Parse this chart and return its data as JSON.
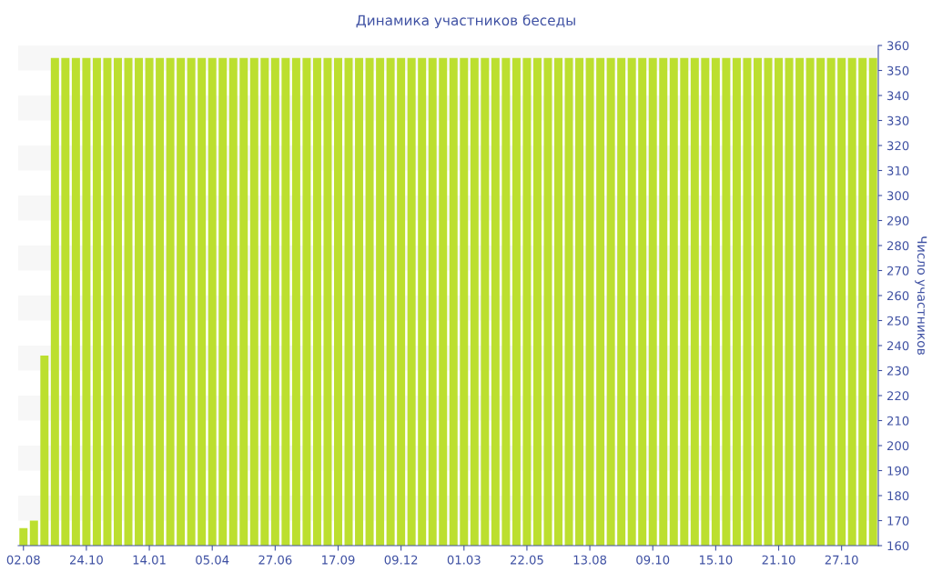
{
  "chart_data": {
    "type": "bar",
    "title": "Динамика участников беседы",
    "ylabel": "Число участников",
    "categories": [
      "02.08",
      null,
      null,
      null,
      null,
      null,
      "24.10",
      null,
      null,
      null,
      null,
      null,
      "14.01",
      null,
      null,
      null,
      null,
      null,
      "05.04",
      null,
      null,
      null,
      null,
      null,
      "27.06",
      null,
      null,
      null,
      null,
      null,
      "17.09",
      null,
      null,
      null,
      null,
      null,
      "09.12",
      null,
      null,
      null,
      null,
      null,
      "01.03",
      null,
      null,
      null,
      null,
      null,
      "22.05",
      null,
      null,
      null,
      null,
      null,
      "13.08",
      null,
      null,
      null,
      null,
      null,
      "09.10",
      null,
      null,
      null,
      null,
      null,
      "15.10",
      null,
      null,
      null,
      null,
      null,
      "21.10",
      null,
      null,
      null,
      null,
      null,
      "27.10",
      null,
      null,
      null
    ],
    "values": [
      167,
      170,
      236,
      355,
      355,
      355,
      355,
      355,
      355,
      355,
      355,
      355,
      355,
      355,
      355,
      355,
      355,
      355,
      355,
      355,
      355,
      355,
      355,
      355,
      355,
      355,
      355,
      355,
      355,
      355,
      355,
      355,
      355,
      355,
      355,
      355,
      355,
      355,
      355,
      355,
      355,
      355,
      355,
      355,
      355,
      355,
      355,
      355,
      355,
      355,
      355,
      355,
      355,
      355,
      355,
      355,
      355,
      355,
      355,
      355,
      355,
      355,
      355,
      355,
      355,
      355,
      355,
      355,
      355,
      355,
      355,
      355,
      355,
      355,
      355,
      355,
      355,
      355,
      355,
      355,
      355,
      355
    ],
    "color": "#bcdf2f",
    "ylim": [
      160,
      360
    ],
    "yticks": [
      160,
      170,
      180,
      190,
      200,
      210,
      220,
      230,
      240,
      250,
      260,
      270,
      280,
      290,
      300,
      310,
      320,
      330,
      340,
      350,
      360
    ],
    "bands": [
      {
        "axis": "y",
        "from": 170,
        "to": 180,
        "color": "#f7f7f7"
      },
      {
        "axis": "y",
        "from": 190,
        "to": 200,
        "color": "#f7f7f7"
      },
      {
        "axis": "y",
        "from": 210,
        "to": 220,
        "color": "#f7f7f7"
      },
      {
        "axis": "y",
        "from": 230,
        "to": 240,
        "color": "#f7f7f7"
      },
      {
        "axis": "y",
        "from": 250,
        "to": 260,
        "color": "#f7f7f7"
      },
      {
        "axis": "y",
        "from": 270,
        "to": 280,
        "color": "#f7f7f7"
      },
      {
        "axis": "y",
        "from": 290,
        "to": 300,
        "color": "#f7f7f7"
      },
      {
        "axis": "y",
        "from": 310,
        "to": 320,
        "color": "#f7f7f7"
      },
      {
        "axis": "y",
        "from": 330,
        "to": 340,
        "color": "#f7f7f7"
      },
      {
        "axis": "y",
        "from": 350,
        "to": 360,
        "color": "#f7f7f7"
      }
    ]
  }
}
